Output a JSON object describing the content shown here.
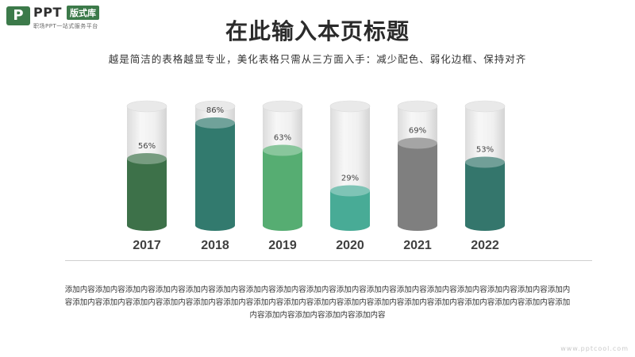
{
  "logo": {
    "mark": "P",
    "name": "PPT",
    "tag": "版式库",
    "sub": "职场PPT一站式服务平台"
  },
  "title": "在此输入本页标题",
  "subtitle": "越是简洁的表格越显专业，美化表格只需从三方面入手：减少配色、弱化边框、保持对齐",
  "body_text": "添加内容添加内容添加内容添加内容添加内容添加内容添加内容添加内容添加内容添加内容添加内容添加内容添加内容添加内容添加内容添加内容添加内容添加内容添加内容添加内容添加内容添加内容添加内容添加内容添加内容添加内容添加内容添加内容添加内容添加内容添加内容添加内容添加内容添加内容添加内容添加内容添加内容添加内容",
  "watermark": "www.pptcool.com",
  "chart_data": {
    "type": "bar",
    "categories": [
      "2017",
      "2018",
      "2019",
      "2020",
      "2021",
      "2022"
    ],
    "values": [
      56,
      86,
      63,
      29,
      69,
      53
    ],
    "value_labels": [
      "56%",
      "86%",
      "63%",
      "29%",
      "69%",
      "53%"
    ],
    "ylim": [
      0,
      100
    ],
    "colors": [
      "#3d7149",
      "#327a6e",
      "#56ad72",
      "#48ab96",
      "#7f7f7f",
      "#34766c"
    ],
    "grid": false,
    "legend": "none"
  }
}
